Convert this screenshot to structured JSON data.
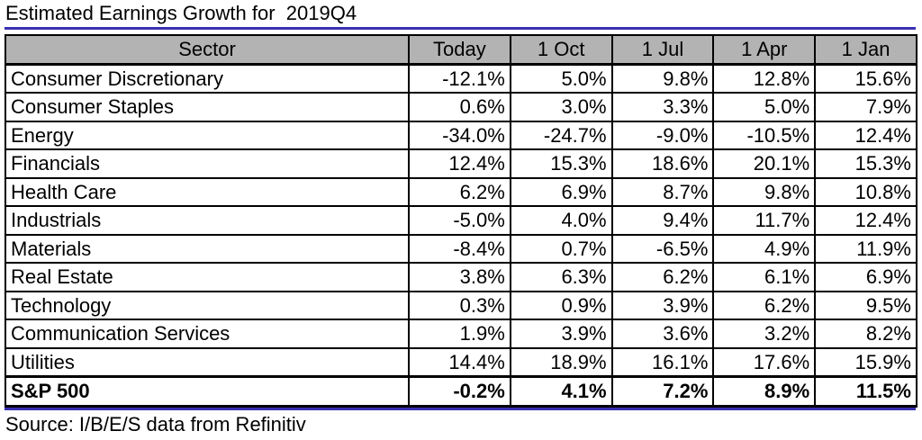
{
  "title": "Estimated Earnings Growth for  2019Q4",
  "source": "Source: I/B/E/S data from Refinitiv",
  "colors": {
    "header_fill": "#b3b3b3",
    "accent_rule": "#3a2fb0",
    "border": "#000000"
  },
  "chart_data": {
    "type": "table",
    "title": "Estimated Earnings Growth for  2019Q4",
    "columns": [
      "Sector",
      "Today",
      "1 Oct",
      "1 Jul",
      "1 Apr",
      "1 Jan"
    ],
    "rows": [
      {
        "sector": "Consumer Discretionary",
        "values": [
          "-12.1%",
          "5.0%",
          "9.8%",
          "12.8%",
          "15.6%"
        ]
      },
      {
        "sector": "Consumer Staples",
        "values": [
          "0.6%",
          "3.0%",
          "3.3%",
          "5.0%",
          "7.9%"
        ]
      },
      {
        "sector": "Energy",
        "values": [
          "-34.0%",
          "-24.7%",
          "-9.0%",
          "-10.5%",
          "12.4%"
        ]
      },
      {
        "sector": "Financials",
        "values": [
          "12.4%",
          "15.3%",
          "18.6%",
          "20.1%",
          "15.3%"
        ]
      },
      {
        "sector": "Health Care",
        "values": [
          "6.2%",
          "6.9%",
          "8.7%",
          "9.8%",
          "10.8%"
        ]
      },
      {
        "sector": "Industrials",
        "values": [
          "-5.0%",
          "4.0%",
          "9.4%",
          "11.7%",
          "12.4%"
        ]
      },
      {
        "sector": "Materials",
        "values": [
          "-8.4%",
          "0.7%",
          "-6.5%",
          "4.9%",
          "11.9%"
        ]
      },
      {
        "sector": "Real Estate",
        "values": [
          "3.8%",
          "6.3%",
          "6.2%",
          "6.1%",
          "6.9%"
        ]
      },
      {
        "sector": "Technology",
        "values": [
          "0.3%",
          "0.9%",
          "3.9%",
          "6.2%",
          "9.5%"
        ]
      },
      {
        "sector": "Communication Services",
        "values": [
          "1.9%",
          "3.9%",
          "3.6%",
          "3.2%",
          "8.2%"
        ]
      },
      {
        "sector": "Utilities",
        "values": [
          "14.4%",
          "18.9%",
          "16.1%",
          "17.6%",
          "15.9%"
        ]
      }
    ],
    "total": {
      "sector": "S&P 500",
      "values": [
        "-0.2%",
        "4.1%",
        "7.2%",
        "8.9%",
        "11.5%"
      ]
    }
  }
}
